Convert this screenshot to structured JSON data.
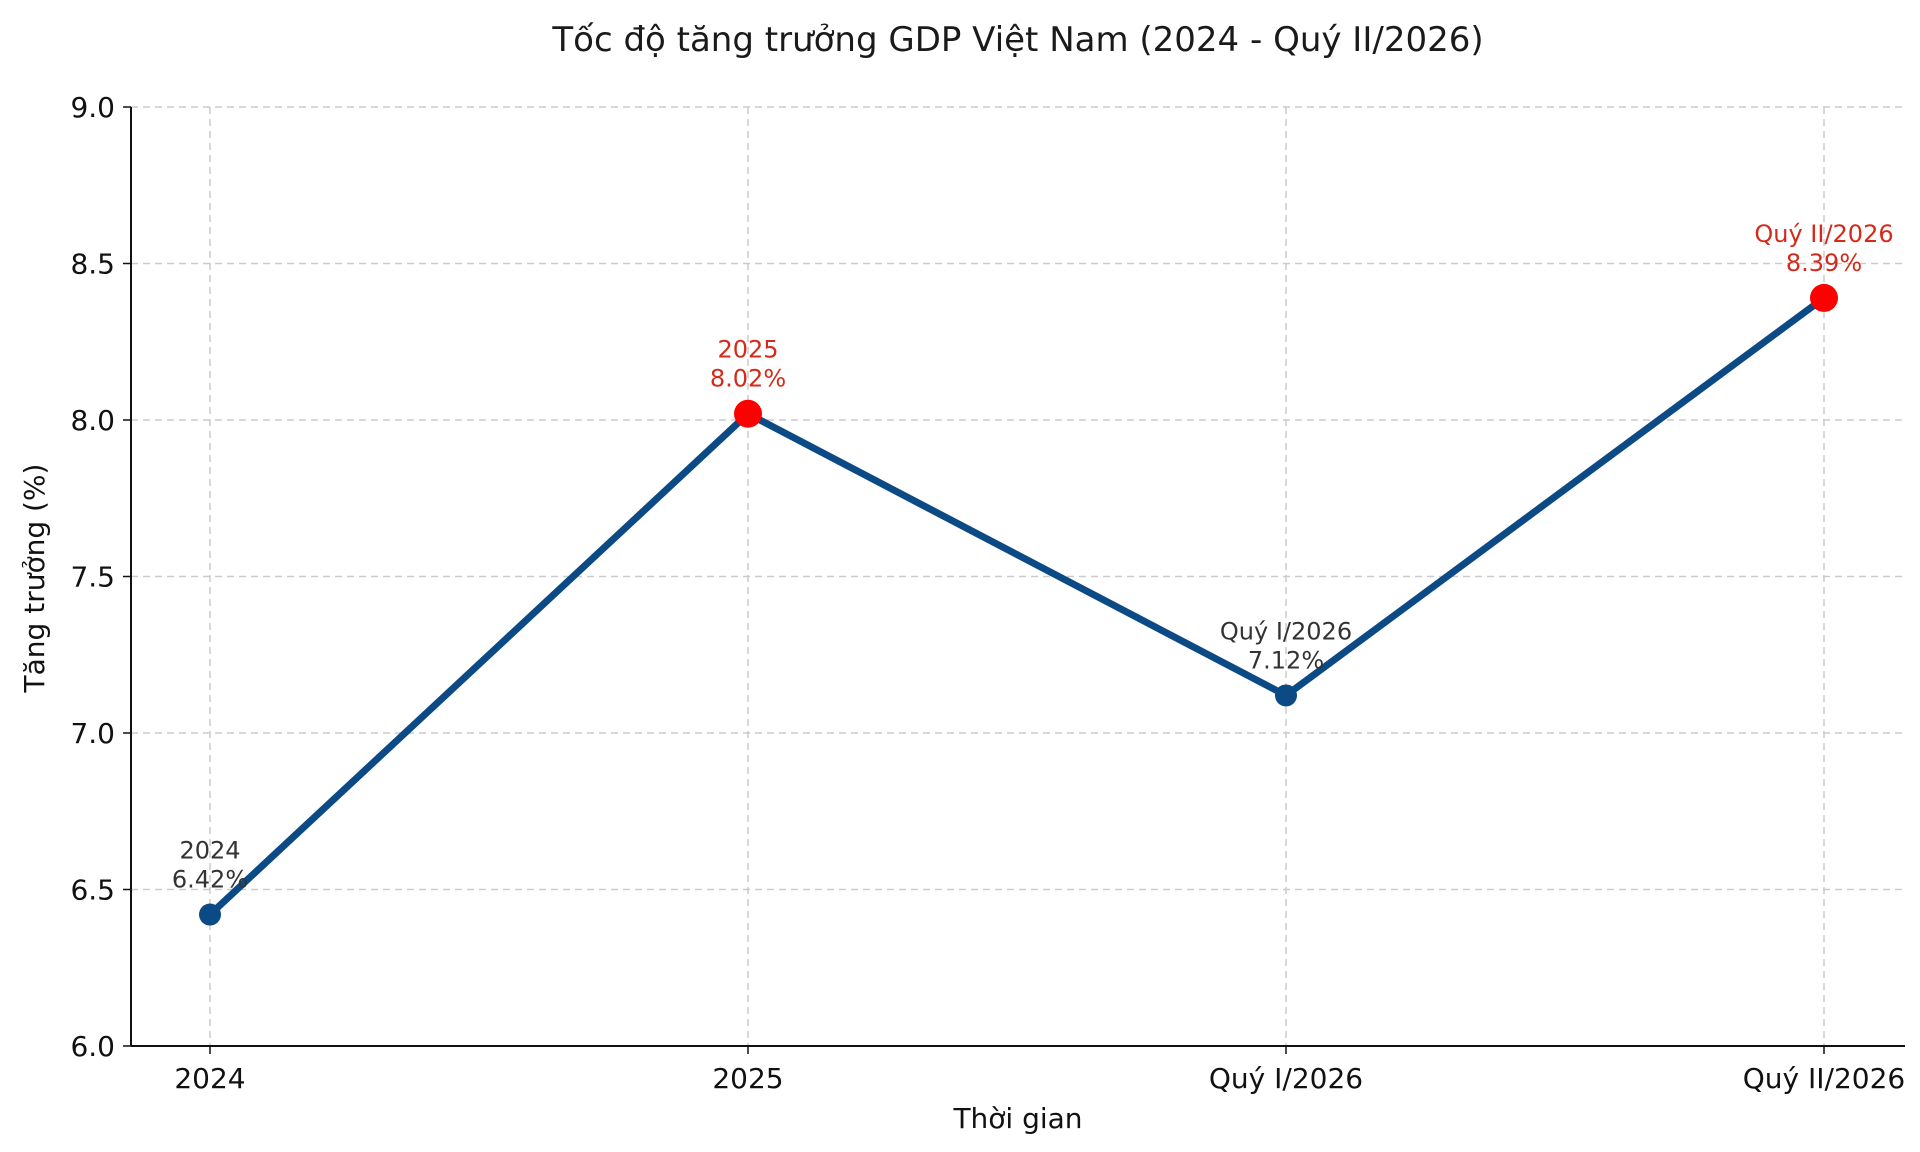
{
  "chart_data": {
    "type": "line",
    "title": "Tốc độ tăng trưởng GDP Việt Nam (2024 - Quý II/2026)",
    "xlabel": "Thời gian",
    "ylabel": "Tăng trưởng (%)",
    "categories": [
      "2024",
      "2025",
      "Quý I/2026",
      "Quý II/2026"
    ],
    "values": [
      6.42,
      8.02,
      7.12,
      8.39
    ],
    "ylim": [
      6.0,
      9.0
    ],
    "yticks": [
      "6.0",
      "6.5",
      "7.0",
      "7.5",
      "8.0",
      "8.5",
      "9.0"
    ],
    "grid": true,
    "point_labels": [
      {
        "line1": "2024",
        "line2": "6.42%",
        "highlight": false
      },
      {
        "line1": "2025",
        "line2": "8.02%",
        "highlight": true
      },
      {
        "line1": "Quý I/2026",
        "line2": "7.12%",
        "highlight": false
      },
      {
        "line1": "Quý II/2026",
        "line2": "8.39%",
        "highlight": true
      }
    ],
    "colors": {
      "line": "#0b4a85",
      "marker": "#0b4a85",
      "highlight_marker": "#ff0000",
      "label": "#333333",
      "highlight_label": "#d42a1b",
      "grid": "#cccccc",
      "axis": "#111111"
    }
  }
}
